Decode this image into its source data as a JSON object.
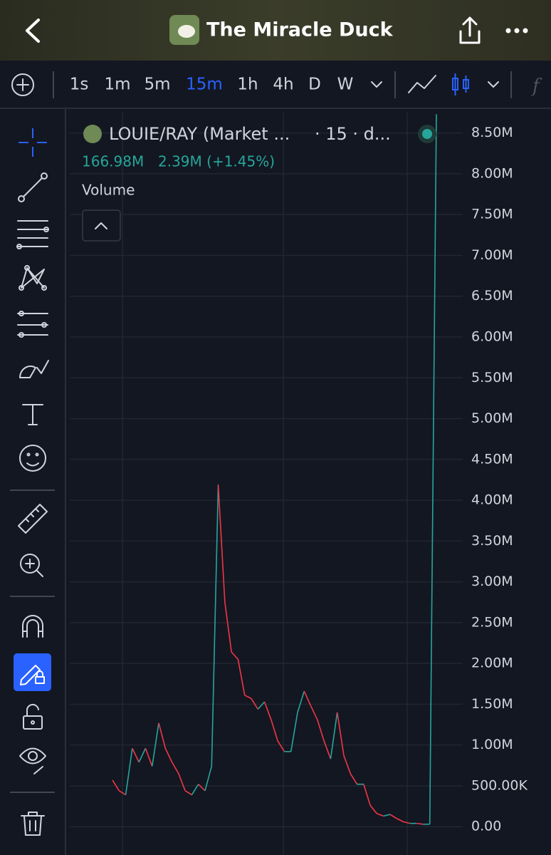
{
  "header": {
    "title": "The Miracle Duck"
  },
  "toolbar": {
    "intervals": [
      "1s",
      "1m",
      "5m",
      "15m",
      "1h",
      "4h",
      "D",
      "W"
    ],
    "active": "15m"
  },
  "legend": {
    "symbol": "LOUIE/RAY (Market ...",
    "meta": "· 15 · d...",
    "price": "166.98M",
    "change": "2.39M (+1.45%)",
    "indicator": "Volume"
  },
  "chart_data": {
    "type": "line",
    "categories": [
      null,
      null,
      null,
      null,
      null,
      null,
      null,
      null,
      null,
      null,
      null,
      null,
      null,
      null,
      null,
      null,
      null,
      null,
      null,
      null,
      null,
      null,
      null,
      null,
      null,
      null,
      null,
      null,
      null,
      null,
      null,
      null,
      null,
      null,
      null,
      null,
      null,
      null,
      null,
      null,
      null,
      null,
      null,
      null,
      null,
      null,
      null,
      null,
      null,
      null
    ],
    "series": [
      {
        "values": [
          570000,
          440000,
          390000,
          960000,
          790000,
          960000,
          740000,
          1270000,
          960000,
          790000,
          650000,
          440000,
          390000,
          520000,
          440000,
          740000,
          4190000,
          2750000,
          2140000,
          2050000,
          1610000,
          1570000,
          1440000,
          1530000,
          1310000,
          1050000,
          920000,
          920000,
          1400000,
          1660000,
          1480000,
          1310000,
          1050000,
          830000,
          1400000,
          870000,
          650000,
          520000,
          520000,
          260000,
          160000,
          130000,
          150000,
          100000,
          60000,
          40000,
          40000,
          30000,
          30000,
          8730000
        ]
      }
    ],
    "up_color": "#26a69a",
    "down_color": "#f23645",
    "ylim": [
      -260000,
      8750000
    ],
    "yticks": [
      {
        "value": 0,
        "label": "0.00"
      },
      {
        "value": 500000,
        "label": "500.00K"
      },
      {
        "value": 1000000,
        "label": "1.00M"
      },
      {
        "value": 1500000,
        "label": "1.50M"
      },
      {
        "value": 2000000,
        "label": "2.00M"
      },
      {
        "value": 2500000,
        "label": "2.50M"
      },
      {
        "value": 3000000,
        "label": "3.00M"
      },
      {
        "value": 3500000,
        "label": "3.50M"
      },
      {
        "value": 4000000,
        "label": "4.00M"
      },
      {
        "value": 4500000,
        "label": "4.50M"
      },
      {
        "value": 5000000,
        "label": "5.00M"
      },
      {
        "value": 5500000,
        "label": "5.50M"
      },
      {
        "value": 6000000,
        "label": "6.00M"
      },
      {
        "value": 6500000,
        "label": "6.50M"
      },
      {
        "value": 7000000,
        "label": "7.00M"
      },
      {
        "value": 7500000,
        "label": "7.50M"
      },
      {
        "value": 8000000,
        "label": "8.00M"
      },
      {
        "value": 8500000,
        "label": "8.50M"
      }
    ],
    "grid": true
  }
}
